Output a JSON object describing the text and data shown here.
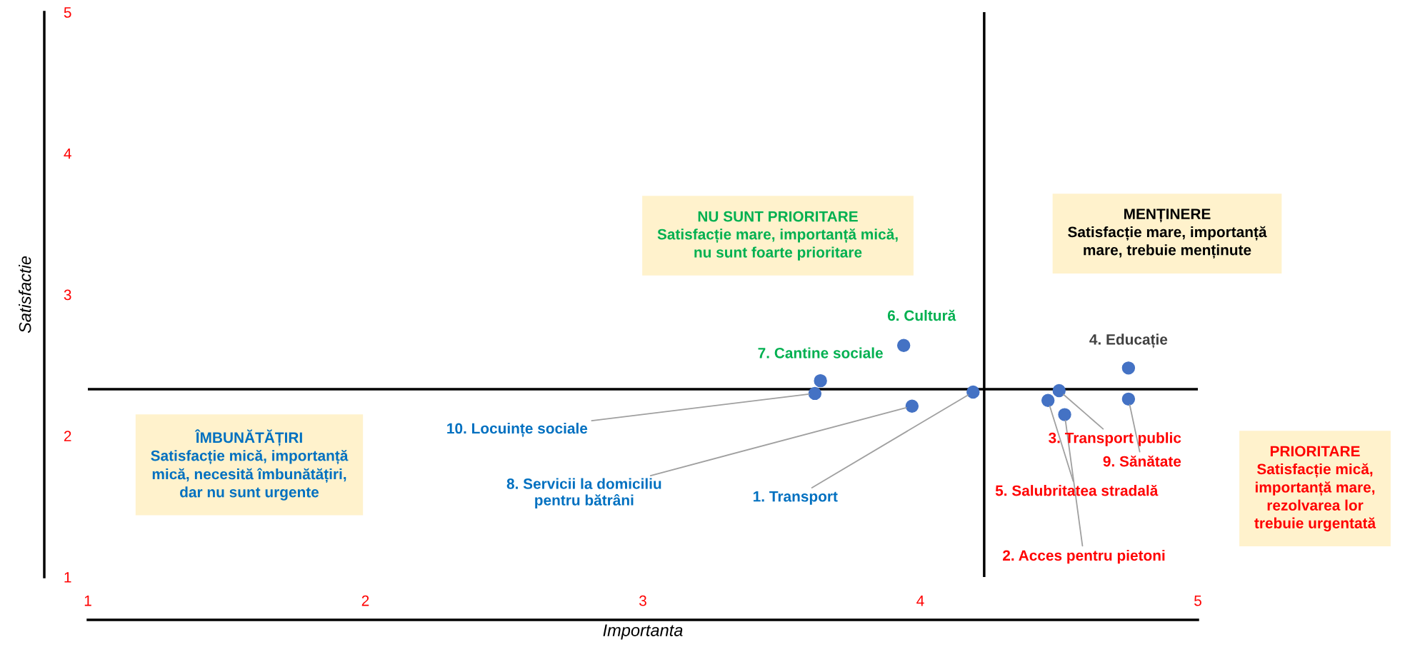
{
  "chart_data": {
    "type": "scatter",
    "xlabel": "Importanta",
    "ylabel": "Satisfactie",
    "x": [
      4.19,
      4.52,
      4.5,
      4.75,
      4.46,
      3.94,
      3.64,
      3.97,
      4.75,
      3.62
    ],
    "series": [
      {
        "color": "#4472c4",
        "values": [
          2.31,
          2.15,
          2.32,
          2.48,
          2.25,
          2.64,
          2.39,
          2.21,
          2.26,
          2.3
        ]
      }
    ],
    "marker": "circle",
    "grid": false,
    "xlim": [
      1,
      5
    ],
    "ylim": [
      1,
      5
    ],
    "xticks": [
      1,
      2,
      3,
      4,
      5
    ],
    "yticks": [
      1,
      2,
      3,
      4,
      5
    ],
    "ref_lines": [
      {
        "axis": "x",
        "value": 4.23,
        "color": "#000000"
      },
      {
        "axis": "y",
        "value": 2.33,
        "color": "#000000"
      }
    ],
    "annotations": [
      {
        "text": "1. Transport",
        "x": 4.19,
        "y": 2.31
      },
      {
        "text": "2. Acces pentru pietoni",
        "x": 4.52,
        "y": 2.15
      },
      {
        "text": "3. Transport public",
        "x": 4.5,
        "y": 2.32
      },
      {
        "text": "4. Educație",
        "x": 4.75,
        "y": 2.48
      },
      {
        "text": "5. Salubritatea stradală",
        "x": 4.46,
        "y": 2.25
      },
      {
        "text": "6. Cultură",
        "x": 3.94,
        "y": 2.64
      },
      {
        "text": "7. Cantine sociale",
        "x": 3.64,
        "y": 2.39
      },
      {
        "text": "8. Servicii la domiciliu\npentru bătrâni",
        "x": 3.97,
        "y": 2.21
      },
      {
        "text": "9. Sănătate",
        "x": 4.75,
        "y": 2.26
      },
      {
        "text": "10. Locuințe sociale",
        "x": 3.62,
        "y": 2.3
      },
      "ÎMBUNĂTĂȚIRI\nSatisfacție mică, importanță\nmică, necesită îmbunătățiri,\ndar nu sunt urgente",
      "NU SUNT PRIORITARE\nSatisfacție mare, importanță mică,\nnu sunt foarte prioritare",
      "MENȚINERE\nSatisfacție mare, importanță\nmare, trebuie menținute",
      "PRIORITARE\nSatisfacție mică,\nimportanță mare,\nrezolvarea lor\ntrebuie urgentată"
    ]
  }
}
